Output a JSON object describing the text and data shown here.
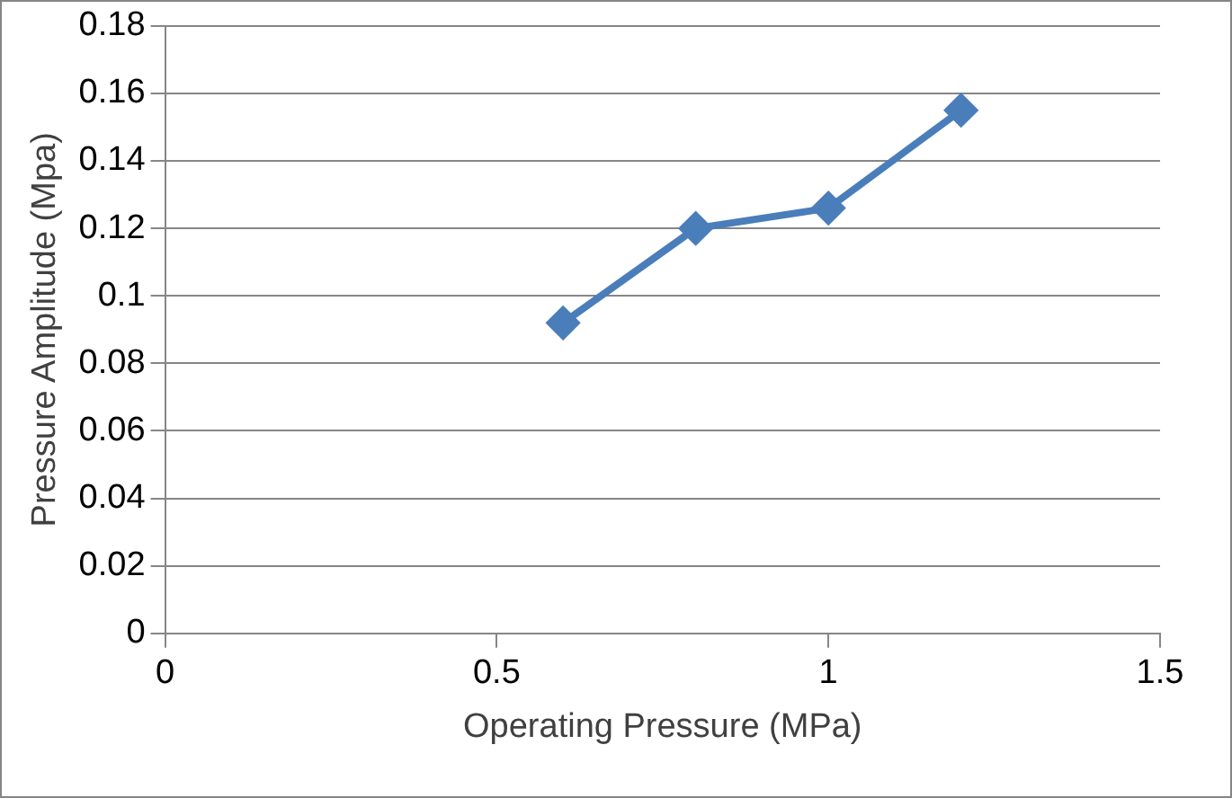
{
  "chart_data": {
    "type": "line",
    "xlabel": "Operating Pressure (MPa)",
    "ylabel": "Pressure Amplitude (Mpa)",
    "x": [
      0.6,
      0.8,
      1,
      1.2
    ],
    "series": [
      {
        "color": "#4a7ebb",
        "values": [
          0.092,
          0.12,
          0.126,
          0.155
        ]
      }
    ],
    "xlim": [
      0,
      1.5
    ],
    "xticks": [
      0,
      0.5,
      1,
      1.5
    ],
    "ylim": [
      0,
      0.18
    ],
    "yticks": [
      0,
      0.02,
      0.04,
      0.06,
      0.08,
      0.1,
      0.12,
      0.14,
      0.16,
      0.18
    ],
    "grid": "y",
    "legend": false,
    "marker": "diamond",
    "line_style": "solid"
  }
}
